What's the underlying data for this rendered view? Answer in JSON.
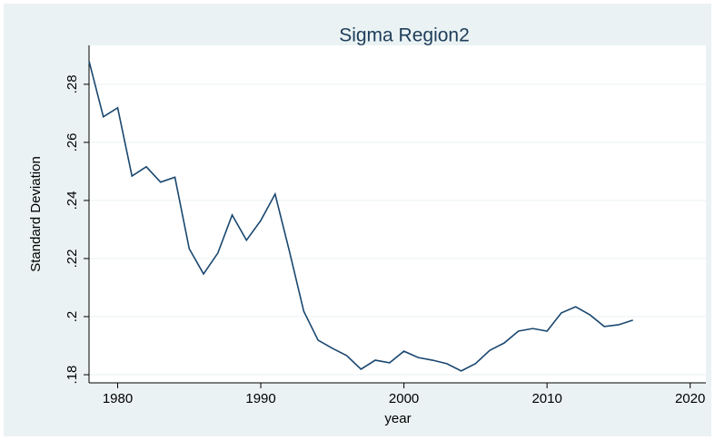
{
  "chart_data": {
    "type": "line",
    "title": "Sigma Region2",
    "x_label": "year",
    "y_label": "Standard Deviation",
    "x": [
      1978,
      1979,
      1980,
      1981,
      1982,
      1983,
      1984,
      1985,
      1986,
      1987,
      1988,
      1989,
      1990,
      1991,
      1992,
      1993,
      1994,
      1995,
      1996,
      1997,
      1998,
      1999,
      2000,
      2001,
      2002,
      2003,
      2004,
      2005,
      2006,
      2007,
      2008,
      2009,
      2010,
      2011,
      2012,
      2013,
      2014,
      2015,
      2016
    ],
    "series": [
      {
        "name": "Standard Deviation",
        "color": "#1a476f",
        "values": [
          0.288,
          0.2688,
          0.2719,
          0.2484,
          0.2516,
          0.2463,
          0.248,
          0.2234,
          0.2147,
          0.2219,
          0.235,
          0.2263,
          0.2331,
          0.2422,
          0.2225,
          0.2019,
          0.1919,
          0.1891,
          0.1866,
          0.1819,
          0.185,
          0.1841,
          0.1881,
          0.1859,
          0.185,
          0.1838,
          0.1813,
          0.1838,
          0.1884,
          0.1909,
          0.195,
          0.1959,
          0.195,
          0.2013,
          0.2034,
          0.2006,
          0.1966,
          0.1972,
          0.1988
        ]
      }
    ],
    "xlim": [
      1978,
      2021.1
    ],
    "xticks": [
      1980,
      1990,
      2000,
      2010,
      2020
    ],
    "ylim": [
      0.1772,
      0.2934
    ],
    "yticks": [
      {
        "value": 0.18,
        "label": ".18"
      },
      {
        "value": 0.2,
        "label": ".2"
      },
      {
        "value": 0.22,
        "label": ".22"
      },
      {
        "value": 0.24,
        "label": ".24"
      },
      {
        "value": 0.26,
        "label": ".26"
      },
      {
        "value": 0.28,
        "label": ".28"
      }
    ],
    "grid": true
  }
}
